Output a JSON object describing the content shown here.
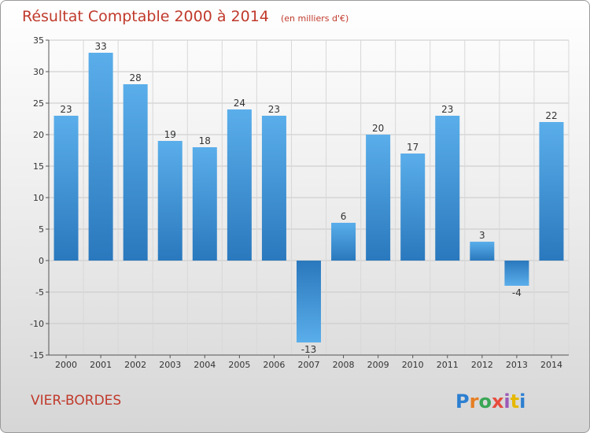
{
  "title": "Résultat Comptable 2000 à 2014",
  "subtitle": "(en milliers d'€)",
  "place": "VIER-BORDES",
  "brand": "Proxiti",
  "chart_data": {
    "type": "bar",
    "title": "Résultat Comptable 2000 à 2014",
    "subtitle": "(en milliers d'€)",
    "xlabel": "",
    "ylabel": "",
    "categories": [
      "2000",
      "2001",
      "2002",
      "2003",
      "2004",
      "2005",
      "2006",
      "2007",
      "2008",
      "2009",
      "2010",
      "2011",
      "2012",
      "2013",
      "2014"
    ],
    "values": [
      23,
      33,
      28,
      19,
      18,
      24,
      23,
      -13,
      6,
      20,
      17,
      23,
      3,
      -4,
      22
    ],
    "value_labels": [
      "23",
      "33",
      "28",
      "19",
      "18",
      "24",
      "23",
      "-13",
      "6",
      "20",
      "17",
      "23",
      "3",
      "-4",
      "22"
    ],
    "ylim": [
      -15,
      35
    ],
    "yticks": [
      35,
      30,
      25,
      20,
      15,
      10,
      5,
      0,
      -5,
      -10,
      -15
    ],
    "ytick_labels": [
      "35",
      "30",
      "25",
      "20",
      "15",
      "10",
      "5",
      "0",
      "-5",
      "-10",
      "-15"
    ],
    "grid": true,
    "bar_color": "#3a8fd6"
  }
}
